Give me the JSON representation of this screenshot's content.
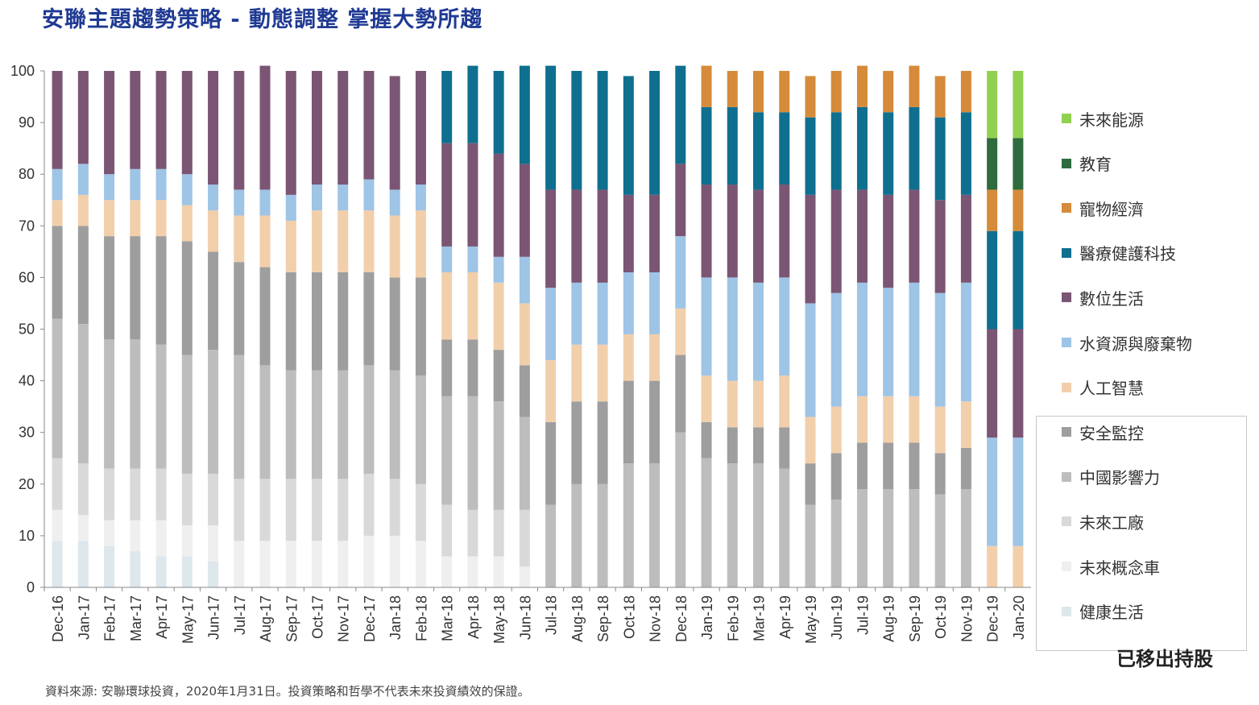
{
  "title": "安聯主題趨勢策略 - 動態調整  掌握大勢所趨",
  "source": "資料來源: 安聯環球投資，2020年1月31日。投資策略和哲學不代表未來投資績效的保證。",
  "removed_label": "已移出持股",
  "legend": [
    {
      "label": "未來能源",
      "color": "#92d050"
    },
    {
      "label": "教育",
      "color": "#2e6b3e"
    },
    {
      "label": "寵物經濟",
      "color": "#d58b3a"
    },
    {
      "label": "醫療健護科技",
      "color": "#0f6f8f"
    },
    {
      "label": "數位生活",
      "color": "#7b5574"
    },
    {
      "label": "水資源與廢棄物",
      "color": "#9ec4e6"
    },
    {
      "label": "人工智慧",
      "color": "#f2cfab"
    },
    {
      "label": "安全監控",
      "color": "#9e9e9e"
    },
    {
      "label": "中國影響力",
      "color": "#bdbdbd"
    },
    {
      "label": "未來工廠",
      "color": "#d9d9d9"
    },
    {
      "label": "未來概念車",
      "color": "#efefef"
    },
    {
      "label": "健康生活",
      "color": "#dde7ec"
    }
  ],
  "chart_data": {
    "type": "bar",
    "stacked": true,
    "ylim": [
      0,
      100
    ],
    "yticks": [
      0,
      10,
      20,
      30,
      40,
      50,
      60,
      70,
      80,
      90,
      100
    ],
    "categories": [
      "Dec-16",
      "Jan-17",
      "Feb-17",
      "Mar-17",
      "Apr-17",
      "May-17",
      "Jun-17",
      "Jul-17",
      "Aug-17",
      "Sep-17",
      "Oct-17",
      "Nov-17",
      "Dec-17",
      "Jan-18",
      "Feb-18",
      "Mar-18",
      "Apr-18",
      "May-18",
      "Jun-18",
      "Jul-18",
      "Aug-18",
      "Sep-18",
      "Oct-18",
      "Nov-18",
      "Dec-18",
      "Jan-19",
      "Feb-19",
      "Mar-19",
      "Apr-19",
      "May-19",
      "Jun-19",
      "Jul-19",
      "Aug-19",
      "Sep-19",
      "Oct-19",
      "Nov-19",
      "Dec-19",
      "Jan-20"
    ],
    "series": [
      {
        "name": "健康生活",
        "color": "#dde7ec",
        "values": [
          9,
          9,
          8,
          7,
          6,
          6,
          5,
          0,
          0,
          0,
          0,
          0,
          0,
          0,
          0,
          0,
          0,
          0,
          0,
          0,
          0,
          0,
          0,
          0,
          0,
          0,
          0,
          0,
          0,
          0,
          0,
          0,
          0,
          0,
          0,
          0,
          0,
          0
        ]
      },
      {
        "name": "未來概念車",
        "color": "#efefef",
        "values": [
          6,
          5,
          5,
          6,
          7,
          6,
          7,
          9,
          9,
          9,
          9,
          9,
          10,
          10,
          9,
          6,
          6,
          6,
          4,
          0,
          0,
          0,
          0,
          0,
          0,
          0,
          0,
          0,
          0,
          0,
          0,
          0,
          0,
          0,
          0,
          0,
          0,
          0
        ]
      },
      {
        "name": "未來工廠",
        "color": "#d9d9d9",
        "values": [
          10,
          10,
          10,
          10,
          10,
          10,
          10,
          12,
          12,
          12,
          12,
          12,
          12,
          11,
          11,
          10,
          9,
          9,
          11,
          0,
          0,
          0,
          0,
          0,
          0,
          0,
          0,
          0,
          0,
          0,
          0,
          0,
          0,
          0,
          0,
          0,
          0,
          0
        ]
      },
      {
        "name": "中國影響力",
        "color": "#bdbdbd",
        "values": [
          27,
          27,
          25,
          25,
          24,
          23,
          24,
          24,
          22,
          21,
          21,
          21,
          21,
          21,
          21,
          21,
          22,
          21,
          18,
          16,
          20,
          20,
          24,
          24,
          30,
          25,
          24,
          24,
          23,
          16,
          17,
          19,
          19,
          19,
          18,
          19,
          0,
          0
        ]
      },
      {
        "name": "安全監控",
        "color": "#9e9e9e",
        "values": [
          18,
          19,
          20,
          20,
          21,
          22,
          19,
          18,
          19,
          19,
          19,
          19,
          18,
          18,
          19,
          11,
          11,
          10,
          10,
          16,
          16,
          16,
          16,
          16,
          15,
          7,
          7,
          7,
          8,
          8,
          9,
          9,
          9,
          9,
          8,
          8,
          0,
          0
        ]
      },
      {
        "name": "人工智慧",
        "color": "#f2cfab",
        "values": [
          5,
          6,
          7,
          7,
          7,
          7,
          8,
          9,
          10,
          10,
          12,
          12,
          12,
          12,
          13,
          13,
          13,
          13,
          12,
          12,
          11,
          11,
          9,
          9,
          9,
          9,
          9,
          9,
          10,
          9,
          9,
          9,
          9,
          9,
          9,
          9,
          8,
          8
        ]
      },
      {
        "name": "水資源與廢棄物",
        "color": "#9ec4e6",
        "values": [
          6,
          6,
          5,
          6,
          6,
          6,
          5,
          5,
          5,
          5,
          5,
          5,
          6,
          5,
          5,
          5,
          5,
          5,
          9,
          14,
          12,
          12,
          12,
          12,
          14,
          19,
          20,
          19,
          19,
          22,
          22,
          22,
          21,
          22,
          22,
          23,
          21,
          21
        ]
      },
      {
        "name": "數位生活",
        "color": "#7b5574",
        "values": [
          19,
          18,
          20,
          19,
          19,
          20,
          22,
          23,
          24,
          24,
          22,
          22,
          21,
          22,
          22,
          20,
          20,
          20,
          18,
          19,
          18,
          18,
          15,
          15,
          14,
          18,
          18,
          18,
          18,
          21,
          20,
          18,
          18,
          18,
          18,
          17,
          21,
          21
        ]
      },
      {
        "name": "醫療健護科技",
        "color": "#0f6f8f",
        "values": [
          0,
          0,
          0,
          0,
          0,
          0,
          0,
          0,
          0,
          0,
          0,
          0,
          0,
          0,
          0,
          14,
          15,
          16,
          19,
          24,
          23,
          23,
          23,
          24,
          19,
          15,
          15,
          15,
          14,
          15,
          15,
          16,
          16,
          16,
          16,
          16,
          19,
          19
        ]
      },
      {
        "name": "寵物經濟",
        "color": "#d58b3a",
        "values": [
          0,
          0,
          0,
          0,
          0,
          0,
          0,
          0,
          0,
          0,
          0,
          0,
          0,
          0,
          0,
          0,
          0,
          0,
          0,
          0,
          0,
          0,
          0,
          0,
          0,
          8,
          7,
          8,
          8,
          8,
          8,
          8,
          8,
          8,
          8,
          8,
          8,
          8
        ]
      },
      {
        "name": "教育",
        "color": "#2e6b3e",
        "values": [
          0,
          0,
          0,
          0,
          0,
          0,
          0,
          0,
          0,
          0,
          0,
          0,
          0,
          0,
          0,
          0,
          0,
          0,
          0,
          0,
          0,
          0,
          0,
          0,
          0,
          0,
          0,
          0,
          0,
          0,
          0,
          0,
          0,
          0,
          0,
          0,
          10,
          10
        ]
      },
      {
        "name": "未來能源",
        "color": "#92d050",
        "values": [
          0,
          0,
          0,
          0,
          0,
          0,
          0,
          0,
          0,
          0,
          0,
          0,
          0,
          0,
          0,
          0,
          0,
          0,
          0,
          0,
          0,
          0,
          0,
          0,
          0,
          0,
          0,
          0,
          0,
          0,
          0,
          0,
          0,
          0,
          0,
          0,
          13,
          13
        ]
      }
    ]
  }
}
